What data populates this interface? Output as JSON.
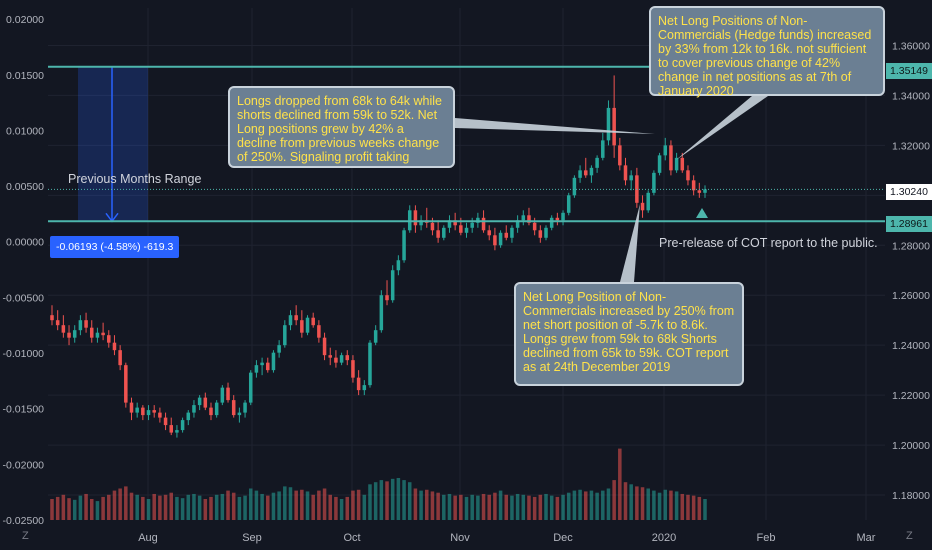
{
  "chart_data": {
    "type": "candlestick",
    "left_axis": {
      "range": [
        -0.025,
        0.021
      ],
      "ticks": [
        "0.02000",
        "0.01500",
        "0.01000",
        "0.00500",
        "0.00000",
        "-0.00500",
        "-0.01000",
        "-0.01500",
        "-0.02000",
        "-0.02500"
      ]
    },
    "right_axis": {
      "range": [
        1.17,
        1.375
      ],
      "ticks": [
        "1.36000",
        "1.34000",
        "1.32000",
        "1.30000",
        "1.28000",
        "1.26000",
        "1.24000",
        "1.22000",
        "1.20000",
        "1.18000"
      ]
    },
    "x_labels": [
      "Aug",
      "Sep",
      "Oct",
      "Nov",
      "Dec",
      "2020",
      "Feb",
      "Mar"
    ],
    "price_tags": [
      {
        "value": "1.35149",
        "price": 1.35149,
        "style": "teal"
      },
      {
        "value": "1.30240",
        "price": 1.3024,
        "style": "white"
      },
      {
        "value": "1.28961",
        "price": 1.28961,
        "style": "teal"
      }
    ],
    "horizontal_lines": [
      {
        "price": 1.35149,
        "color": "#4db6ac"
      },
      {
        "price": 1.28961,
        "color": "#4db6ac"
      }
    ],
    "measure_label": "-0.06193 (-4.58%) -619.3",
    "range_label": "Previous Months Range",
    "colors": {
      "up": "#26a69a",
      "down": "#ef5350",
      "background": "#131722",
      "grid": "#1f2330",
      "axis_text": "#b2b5be"
    },
    "candles": [
      [
        1.252,
        1.256,
        1.248,
        1.25
      ],
      [
        1.25,
        1.254,
        1.246,
        1.248
      ],
      [
        1.248,
        1.252,
        1.243,
        1.245
      ],
      [
        1.245,
        1.248,
        1.24,
        1.243
      ],
      [
        1.243,
        1.248,
        1.241,
        1.246
      ],
      [
        1.246,
        1.252,
        1.244,
        1.25
      ],
      [
        1.25,
        1.253,
        1.245,
        1.247
      ],
      [
        1.247,
        1.25,
        1.241,
        1.243
      ],
      [
        1.243,
        1.247,
        1.241,
        1.245
      ],
      [
        1.245,
        1.249,
        1.242,
        1.244
      ],
      [
        1.244,
        1.246,
        1.239,
        1.241
      ],
      [
        1.241,
        1.244,
        1.236,
        1.238
      ],
      [
        1.238,
        1.24,
        1.23,
        1.232
      ],
      [
        1.232,
        1.233,
        1.215,
        1.217
      ],
      [
        1.217,
        1.219,
        1.21,
        1.213
      ],
      [
        1.213,
        1.217,
        1.211,
        1.215
      ],
      [
        1.215,
        1.216,
        1.21,
        1.212
      ],
      [
        1.212,
        1.216,
        1.21,
        1.214
      ],
      [
        1.214,
        1.216,
        1.211,
        1.213
      ],
      [
        1.213,
        1.215,
        1.209,
        1.211
      ],
      [
        1.211,
        1.213,
        1.206,
        1.208
      ],
      [
        1.208,
        1.211,
        1.204,
        1.205
      ],
      [
        1.205,
        1.208,
        1.203,
        1.206
      ],
      [
        1.206,
        1.211,
        1.205,
        1.21
      ],
      [
        1.21,
        1.214,
        1.208,
        1.213
      ],
      [
        1.213,
        1.218,
        1.211,
        1.216
      ],
      [
        1.216,
        1.22,
        1.214,
        1.219
      ],
      [
        1.219,
        1.221,
        1.214,
        1.215
      ],
      [
        1.215,
        1.217,
        1.21,
        1.212
      ],
      [
        1.212,
        1.218,
        1.211,
        1.217
      ],
      [
        1.217,
        1.224,
        1.216,
        1.223
      ],
      [
        1.223,
        1.225,
        1.217,
        1.218
      ],
      [
        1.218,
        1.22,
        1.211,
        1.212
      ],
      [
        1.212,
        1.215,
        1.209,
        1.213
      ],
      [
        1.213,
        1.218,
        1.211,
        1.217
      ],
      [
        1.217,
        1.23,
        1.216,
        1.229
      ],
      [
        1.229,
        1.234,
        1.227,
        1.232
      ],
      [
        1.232,
        1.235,
        1.228,
        1.233
      ],
      [
        1.233,
        1.235,
        1.229,
        1.23
      ],
      [
        1.23,
        1.238,
        1.229,
        1.237
      ],
      [
        1.237,
        1.242,
        1.235,
        1.24
      ],
      [
        1.24,
        1.25,
        1.239,
        1.248
      ],
      [
        1.248,
        1.254,
        1.246,
        1.252
      ],
      [
        1.252,
        1.256,
        1.248,
        1.25
      ],
      [
        1.25,
        1.254,
        1.243,
        1.245
      ],
      [
        1.245,
        1.252,
        1.244,
        1.251
      ],
      [
        1.251,
        1.253,
        1.247,
        1.248
      ],
      [
        1.248,
        1.25,
        1.241,
        1.243
      ],
      [
        1.243,
        1.245,
        1.234,
        1.236
      ],
      [
        1.236,
        1.239,
        1.232,
        1.235
      ],
      [
        1.235,
        1.238,
        1.231,
        1.233
      ],
      [
        1.233,
        1.237,
        1.232,
        1.236
      ],
      [
        1.236,
        1.238,
        1.232,
        1.234
      ],
      [
        1.234,
        1.236,
        1.225,
        1.227
      ],
      [
        1.227,
        1.23,
        1.22,
        1.222
      ],
      [
        1.222,
        1.226,
        1.22,
        1.224
      ],
      [
        1.224,
        1.242,
        1.223,
        1.241
      ],
      [
        1.241,
        1.248,
        1.24,
        1.246
      ],
      [
        1.246,
        1.262,
        1.245,
        1.26
      ],
      [
        1.26,
        1.266,
        1.256,
        1.258
      ],
      [
        1.258,
        1.272,
        1.257,
        1.27
      ],
      [
        1.27,
        1.276,
        1.268,
        1.274
      ],
      [
        1.274,
        1.287,
        1.273,
        1.286
      ],
      [
        1.286,
        1.296,
        1.285,
        1.294
      ],
      [
        1.294,
        1.296,
        1.285,
        1.288
      ],
      [
        1.288,
        1.292,
        1.286,
        1.29
      ],
      [
        1.29,
        1.295,
        1.287,
        1.289
      ],
      [
        1.289,
        1.291,
        1.284,
        1.286
      ],
      [
        1.286,
        1.29,
        1.281,
        1.283
      ],
      [
        1.283,
        1.288,
        1.282,
        1.287
      ],
      [
        1.287,
        1.292,
        1.285,
        1.29
      ],
      [
        1.29,
        1.293,
        1.286,
        1.288
      ],
      [
        1.288,
        1.291,
        1.284,
        1.285
      ],
      [
        1.285,
        1.289,
        1.283,
        1.287
      ],
      [
        1.287,
        1.291,
        1.285,
        1.289
      ],
      [
        1.289,
        1.293,
        1.287,
        1.291
      ],
      [
        1.291,
        1.294,
        1.285,
        1.286
      ],
      [
        1.286,
        1.288,
        1.282,
        1.284
      ],
      [
        1.284,
        1.287,
        1.278,
        1.28
      ],
      [
        1.28,
        1.286,
        1.279,
        1.285
      ],
      [
        1.285,
        1.288,
        1.282,
        1.283
      ],
      [
        1.283,
        1.288,
        1.281,
        1.287
      ],
      [
        1.287,
        1.292,
        1.285,
        1.29
      ],
      [
        1.29,
        1.294,
        1.288,
        1.292
      ],
      [
        1.292,
        1.295,
        1.288,
        1.289
      ],
      [
        1.289,
        1.291,
        1.284,
        1.286
      ],
      [
        1.286,
        1.288,
        1.281,
        1.283
      ],
      [
        1.283,
        1.288,
        1.282,
        1.287
      ],
      [
        1.287,
        1.292,
        1.286,
        1.291
      ],
      [
        1.291,
        1.293,
        1.288,
        1.29
      ],
      [
        1.29,
        1.294,
        1.288,
        1.293
      ],
      [
        1.293,
        1.301,
        1.292,
        1.3
      ],
      [
        1.3,
        1.308,
        1.299,
        1.307
      ],
      [
        1.307,
        1.312,
        1.305,
        1.31
      ],
      [
        1.31,
        1.315,
        1.307,
        1.308
      ],
      [
        1.308,
        1.312,
        1.305,
        1.311
      ],
      [
        1.311,
        1.316,
        1.309,
        1.315
      ],
      [
        1.315,
        1.325,
        1.314,
        1.322
      ],
      [
        1.322,
        1.338,
        1.32,
        1.335
      ],
      [
        1.335,
        1.348,
        1.315,
        1.32
      ],
      [
        1.32,
        1.323,
        1.31,
        1.312
      ],
      [
        1.312,
        1.315,
        1.304,
        1.306
      ],
      [
        1.306,
        1.31,
        1.302,
        1.308
      ],
      [
        1.308,
        1.311,
        1.295,
        1.297
      ],
      [
        1.297,
        1.3,
        1.291,
        1.294
      ],
      [
        1.294,
        1.302,
        1.293,
        1.301
      ],
      [
        1.301,
        1.31,
        1.3,
        1.309
      ],
      [
        1.309,
        1.317,
        1.308,
        1.316
      ],
      [
        1.316,
        1.323,
        1.314,
        1.32
      ],
      [
        1.32,
        1.322,
        1.308,
        1.31
      ],
      [
        1.31,
        1.317,
        1.309,
        1.315
      ],
      [
        1.315,
        1.317,
        1.309,
        1.31
      ],
      [
        1.31,
        1.312,
        1.304,
        1.306
      ],
      [
        1.306,
        1.308,
        1.3,
        1.302
      ],
      [
        1.302,
        1.305,
        1.299,
        1.301
      ],
      [
        1.301,
        1.304,
        1.299,
        1.3024
      ]
    ],
    "volume_note": "volume bars scale 0-1, colored by candle direction",
    "volumes": [
      0.5,
      0.55,
      0.6,
      0.52,
      0.48,
      0.58,
      0.62,
      0.5,
      0.45,
      0.55,
      0.6,
      0.7,
      0.75,
      0.8,
      0.65,
      0.6,
      0.55,
      0.5,
      0.62,
      0.58,
      0.6,
      0.65,
      0.55,
      0.52,
      0.6,
      0.62,
      0.58,
      0.5,
      0.55,
      0.6,
      0.62,
      0.7,
      0.65,
      0.55,
      0.58,
      0.75,
      0.7,
      0.62,
      0.58,
      0.65,
      0.68,
      0.8,
      0.78,
      0.7,
      0.72,
      0.68,
      0.6,
      0.7,
      0.75,
      0.6,
      0.55,
      0.5,
      0.55,
      0.7,
      0.72,
      0.6,
      0.85,
      0.9,
      0.95,
      0.92,
      0.98,
      1.0,
      0.95,
      0.9,
      0.75,
      0.7,
      0.72,
      0.68,
      0.65,
      0.6,
      0.62,
      0.58,
      0.6,
      0.55,
      0.6,
      0.58,
      0.62,
      0.6,
      0.65,
      0.7,
      0.6,
      0.58,
      0.62,
      0.6,
      0.58,
      0.55,
      0.6,
      0.62,
      0.58,
      0.55,
      0.6,
      0.65,
      0.7,
      0.72,
      0.68,
      0.7,
      0.65,
      0.7,
      0.75,
      0.95,
      1.7,
      0.9,
      0.85,
      0.8,
      0.78,
      0.75,
      0.7,
      0.65,
      0.72,
      0.7,
      0.68,
      0.62,
      0.6,
      0.58,
      0.55,
      0.5,
      0.6,
      0.55
    ]
  },
  "annotations": {
    "a1": "Longs dropped from 68k to 64k while shorts declined from 59k to 52k. Net Long positions grew by 42% a decline from previous weeks change of 250%. Signaling profit taking",
    "a2": "Net Long Positions of Non-Commercials (Hedge funds) increased by 33% from 12k to 16k. not sufficient to cover previous change of 42% change in net positions as at 7th of January 2020",
    "a3": "Net Long Position of Non-Commercials increased by 250%  from net short position of -5.7k to 8.6k. Longs grew from 59k to 68k Shorts declined from 65k to 59k. COT report as at 24th December 2019",
    "pre_release": "Pre-release of COT report to the public."
  },
  "corner_left": "Z",
  "corner_right": "Z"
}
